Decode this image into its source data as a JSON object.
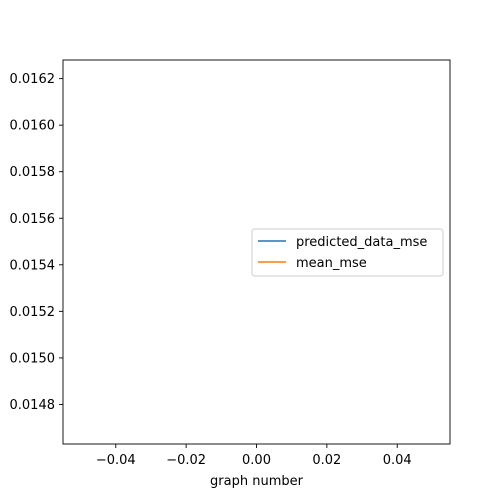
{
  "chart_data": {
    "type": "line",
    "title": "",
    "xlabel": "graph number",
    "ylabel": "",
    "xlim": [
      -0.055,
      0.055
    ],
    "ylim": [
      0.01463,
      0.01628
    ],
    "x_ticks": [
      -0.04,
      -0.02,
      0.0,
      0.02,
      0.04
    ],
    "x_tick_labels": [
      "−0.04",
      "−0.02",
      "0.00",
      "0.02",
      "0.04"
    ],
    "y_ticks": [
      0.0148,
      0.015,
      0.0152,
      0.0154,
      0.0156,
      0.0158,
      0.016,
      0.0162
    ],
    "y_tick_labels": [
      "0.0148",
      "0.0150",
      "0.0152",
      "0.0154",
      "0.0156",
      "0.0158",
      "0.0160",
      "0.0162"
    ],
    "grid": false,
    "legend_position": "center-right",
    "series": [
      {
        "name": "predicted_data_mse",
        "color": "#1f77b4",
        "x": [],
        "y": []
      },
      {
        "name": "mean_mse",
        "color": "#ff7f0e",
        "x": [],
        "y": []
      }
    ]
  }
}
